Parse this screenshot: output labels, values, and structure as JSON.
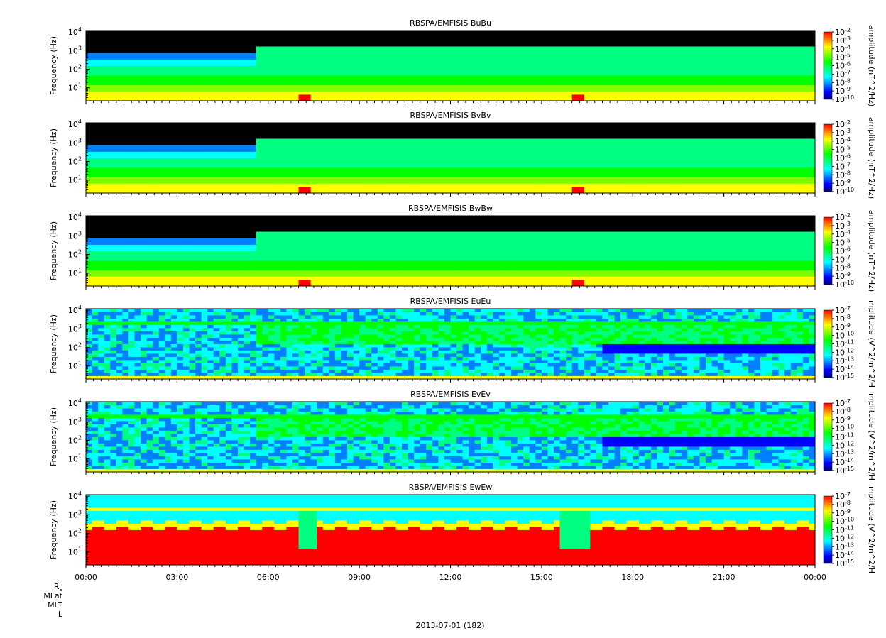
{
  "chart_data": {
    "type": "heatmap",
    "x_axis": {
      "ticks": [
        "00:00",
        "03:00",
        "06:00",
        "09:00",
        "12:00",
        "15:00",
        "18:00",
        "21:00",
        "00:00"
      ],
      "range_hours": [
        0,
        24
      ],
      "date_label": "2013-07-01 (182)",
      "ephemeris_labels": [
        "R_E",
        "MLat",
        "MLT",
        "L"
      ]
    },
    "y_axis": {
      "label": "Frequency (Hz)",
      "scale": "log",
      "range": [
        2,
        12000
      ],
      "ticks": [
        {
          "base": "10",
          "exp": "4",
          "value": 10000
        },
        {
          "base": "10",
          "exp": "3",
          "value": 1000
        },
        {
          "base": "10",
          "exp": "2",
          "value": 100
        },
        {
          "base": "10",
          "exp": "1",
          "value": 10
        }
      ]
    },
    "panels": [
      {
        "title": "RBSPA/EMFISIS  BuBu",
        "kind": "B",
        "colorbar_label": "amplitude (nT^2/Hz)",
        "cb_ticks": [
          {
            "b": "10",
            "e": "-2"
          },
          {
            "b": "10",
            "e": "-3"
          },
          {
            "b": "10",
            "e": "-4"
          },
          {
            "b": "10",
            "e": "-5"
          },
          {
            "b": "10",
            "e": "-6"
          },
          {
            "b": "10",
            "e": "-7"
          },
          {
            "b": "10",
            "e": "-8"
          },
          {
            "b": "10",
            "e": "-9"
          },
          {
            "b": "10",
            "e": "-10"
          }
        ],
        "cb_range_exp": [
          -10,
          -2
        ]
      },
      {
        "title": "RBSPA/EMFISIS  BvBv",
        "kind": "B",
        "colorbar_label": "amplitude (nT^2/Hz)",
        "cb_ticks": [
          {
            "b": "10",
            "e": "-2"
          },
          {
            "b": "10",
            "e": "-3"
          },
          {
            "b": "10",
            "e": "-4"
          },
          {
            "b": "10",
            "e": "-5"
          },
          {
            "b": "10",
            "e": "-6"
          },
          {
            "b": "10",
            "e": "-7"
          },
          {
            "b": "10",
            "e": "-8"
          },
          {
            "b": "10",
            "e": "-9"
          },
          {
            "b": "10",
            "e": "-10"
          }
        ],
        "cb_range_exp": [
          -10,
          -2
        ]
      },
      {
        "title": "RBSPA/EMFISIS  BwBw",
        "kind": "B",
        "colorbar_label": "amplitude (nT^2/Hz)",
        "cb_ticks": [
          {
            "b": "10",
            "e": "-2"
          },
          {
            "b": "10",
            "e": "-3"
          },
          {
            "b": "10",
            "e": "-4"
          },
          {
            "b": "10",
            "e": "-5"
          },
          {
            "b": "10",
            "e": "-6"
          },
          {
            "b": "10",
            "e": "-7"
          },
          {
            "b": "10",
            "e": "-8"
          },
          {
            "b": "10",
            "e": "-9"
          },
          {
            "b": "10",
            "e": "-10"
          }
        ],
        "cb_range_exp": [
          -10,
          -2
        ]
      },
      {
        "title": "RBSPA/EMFISIS  EuEu",
        "kind": "E",
        "colorbar_label": "mplitude (V^2/m^2/H",
        "cb_ticks": [
          {
            "b": "10",
            "e": "-7"
          },
          {
            "b": "10",
            "e": "-8"
          },
          {
            "b": "10",
            "e": "-9"
          },
          {
            "b": "10",
            "e": "-10"
          },
          {
            "b": "10",
            "e": "-11"
          },
          {
            "b": "10",
            "e": "-12"
          },
          {
            "b": "10",
            "e": "-13"
          },
          {
            "b": "10",
            "e": "-14"
          },
          {
            "b": "10",
            "e": "-15"
          }
        ],
        "cb_range_exp": [
          -15,
          -7
        ]
      },
      {
        "title": "RBSPA/EMFISIS  EvEv",
        "kind": "E",
        "colorbar_label": "mplitude (V^2/m^2/H",
        "cb_ticks": [
          {
            "b": "10",
            "e": "-7"
          },
          {
            "b": "10",
            "e": "-8"
          },
          {
            "b": "10",
            "e": "-9"
          },
          {
            "b": "10",
            "e": "-10"
          },
          {
            "b": "10",
            "e": "-11"
          },
          {
            "b": "10",
            "e": "-12"
          },
          {
            "b": "10",
            "e": "-13"
          },
          {
            "b": "10",
            "e": "-14"
          },
          {
            "b": "10",
            "e": "-15"
          }
        ],
        "cb_range_exp": [
          -15,
          -7
        ]
      },
      {
        "title": "RBSPA/EMFISIS  EwEw",
        "kind": "Ew",
        "colorbar_label": "mplitude (V^2/m^2/H",
        "cb_ticks": [
          {
            "b": "10",
            "e": "-7"
          },
          {
            "b": "10",
            "e": "-8"
          },
          {
            "b": "10",
            "e": "-9"
          },
          {
            "b": "10",
            "e": "-10"
          },
          {
            "b": "10",
            "e": "-11"
          },
          {
            "b": "10",
            "e": "-12"
          },
          {
            "b": "10",
            "e": "-13"
          },
          {
            "b": "10",
            "e": "-14"
          },
          {
            "b": "10",
            "e": "-15"
          }
        ],
        "cb_range_exp": [
          -15,
          -7
        ]
      }
    ],
    "colormap": [
      "#000080",
      "#0000ff",
      "#0080ff",
      "#00ffff",
      "#00ff80",
      "#00ff00",
      "#80ff00",
      "#ffff00",
      "#ff8000",
      "#ff0000"
    ]
  }
}
